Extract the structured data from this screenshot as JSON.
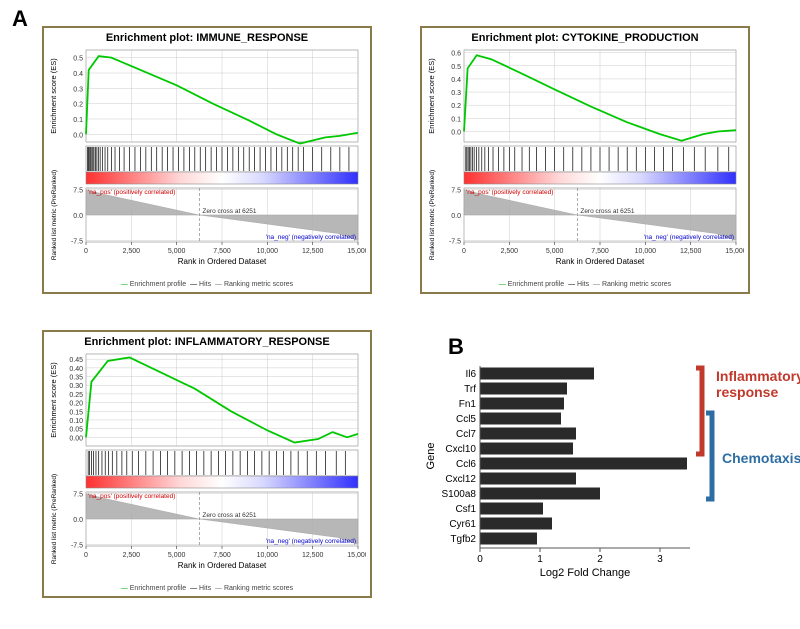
{
  "panel_labels": {
    "A": "A",
    "B": "B"
  },
  "gsea": {
    "common": {
      "ylabel_es": "Enrichment score (ES)",
      "ylabel_rank": "Ranked list metric (PreRanked)",
      "xlabel": "Rank in Ordered Dataset",
      "zero_cross": "Zero cross at 6251",
      "pos_corr": "'na_pos' (positively correlated)",
      "neg_corr": "'na_neg' (negatively correlated)",
      "legend_profile": "Enrichment profile",
      "legend_hits": "Hits",
      "legend_ranking": "Ranking metric scores",
      "x_ticks": [
        0,
        2500,
        5000,
        7500,
        10000,
        12500,
        15000
      ],
      "rank_ticks": [
        -7.5,
        0.0,
        7.5
      ],
      "es_color": "#00c800",
      "hit_color": "#000000",
      "grid_color": "#c0c0c0",
      "gradient_pos": "#ff3030",
      "gradient_neg": "#3030ff",
      "rank_fill": "#b0b0b0",
      "x_min": 0,
      "x_max": 15000,
      "rank_min": -8,
      "rank_max": 8,
      "bg": "#ffffff"
    },
    "plots": [
      {
        "title": "Enrichment plot: IMMUNE_RESPONSE",
        "es_ticks": [
          0.0,
          0.1,
          0.2,
          0.3,
          0.4,
          0.5
        ],
        "es_min": -0.05,
        "es_max": 0.55,
        "curve": [
          [
            0,
            0.0
          ],
          [
            150,
            0.42
          ],
          [
            700,
            0.51
          ],
          [
            1400,
            0.5
          ],
          [
            3000,
            0.42
          ],
          [
            5000,
            0.32
          ],
          [
            7000,
            0.2
          ],
          [
            9000,
            0.09
          ],
          [
            10500,
            0.0
          ],
          [
            11800,
            -0.06
          ],
          [
            13200,
            -0.02
          ],
          [
            14000,
            -0.01
          ],
          [
            15000,
            0.01
          ]
        ],
        "hits": [
          80,
          130,
          180,
          240,
          320,
          380,
          440,
          520,
          600,
          680,
          780,
          900,
          1050,
          1200,
          1400,
          1600,
          1850,
          2100,
          2400,
          2700,
          3000,
          3300,
          3600,
          3900,
          4200,
          4500,
          4800,
          5100,
          5400,
          5700,
          6000,
          6300,
          6600,
          6900,
          7200,
          7500,
          7800,
          8100,
          8400,
          8700,
          9000,
          9300,
          9600,
          9900,
          10200,
          10500,
          10800,
          11100,
          11400,
          11700,
          12000,
          12500,
          13000,
          13500,
          14000,
          14500
        ]
      },
      {
        "title": "Enrichment plot: CYTOKINE_PRODUCTION",
        "es_ticks": [
          0.0,
          0.1,
          0.2,
          0.3,
          0.4,
          0.5,
          0.6
        ],
        "es_min": -0.08,
        "es_max": 0.62,
        "curve": [
          [
            0,
            0.0
          ],
          [
            200,
            0.48
          ],
          [
            700,
            0.58
          ],
          [
            1500,
            0.55
          ],
          [
            3200,
            0.44
          ],
          [
            5000,
            0.32
          ],
          [
            7000,
            0.19
          ],
          [
            9000,
            0.07
          ],
          [
            10800,
            -0.02
          ],
          [
            12000,
            -0.07
          ],
          [
            13200,
            -0.02
          ],
          [
            14000,
            0.0
          ],
          [
            15000,
            0.01
          ]
        ],
        "hits": [
          100,
          160,
          230,
          300,
          380,
          460,
          560,
          680,
          820,
          980,
          1150,
          1350,
          1600,
          1900,
          2200,
          2500,
          2800,
          3200,
          3600,
          4000,
          4500,
          5000,
          5500,
          6000,
          6500,
          7000,
          7500,
          8000,
          8500,
          9000,
          9500,
          10000,
          10500,
          11000,
          11500,
          12100,
          12700,
          13300,
          14000,
          14600
        ]
      },
      {
        "title": "Enrichment plot: INFLAMMATORY_RESPONSE",
        "es_ticks": [
          0.0,
          0.05,
          0.1,
          0.15,
          0.2,
          0.25,
          0.3,
          0.35,
          0.4,
          0.45
        ],
        "es_min": -0.05,
        "es_max": 0.48,
        "curve": [
          [
            0,
            0.0
          ],
          [
            300,
            0.32
          ],
          [
            1200,
            0.44
          ],
          [
            2400,
            0.46
          ],
          [
            4000,
            0.38
          ],
          [
            6000,
            0.28
          ],
          [
            8000,
            0.15
          ],
          [
            10000,
            0.04
          ],
          [
            11500,
            -0.03
          ],
          [
            12800,
            -0.01
          ],
          [
            13600,
            0.03
          ],
          [
            14400,
            0.0
          ],
          [
            15000,
            0.02
          ]
        ],
        "hits": [
          120,
          200,
          310,
          420,
          550,
          700,
          880,
          1060,
          1250,
          1450,
          1700,
          1980,
          2250,
          2550,
          2900,
          3300,
          3700,
          4100,
          4500,
          4900,
          5300,
          5700,
          6100,
          6500,
          6900,
          7300,
          7700,
          8100,
          8500,
          8900,
          9300,
          9700,
          10100,
          10500,
          10900,
          11300,
          11700,
          12200,
          12700,
          13200,
          13800,
          14300
        ]
      }
    ]
  },
  "barchart": {
    "xlabel": "Log2 Fold Change",
    "ylabel": "Gene",
    "x_ticks": [
      0,
      1,
      2,
      3
    ],
    "x_min": 0,
    "x_max": 3.5,
    "bar_color": "#2a2a2a",
    "bg": "#ffffff",
    "axis_color": "#555555",
    "tick_fontsize": 10,
    "label_fontsize": 12,
    "items": [
      {
        "gene": "Il6",
        "value": 1.9
      },
      {
        "gene": "Trf",
        "value": 1.45
      },
      {
        "gene": "Fn1",
        "value": 1.4
      },
      {
        "gene": "Ccl5",
        "value": 1.35
      },
      {
        "gene": "Ccl7",
        "value": 1.6
      },
      {
        "gene": "Cxcl10",
        "value": 1.55
      },
      {
        "gene": "Ccl6",
        "value": 3.45
      },
      {
        "gene": "Cxcl12",
        "value": 1.6
      },
      {
        "gene": "S100a8",
        "value": 2.0
      },
      {
        "gene": "Csf1",
        "value": 1.05
      },
      {
        "gene": "Cyr61",
        "value": 1.2
      },
      {
        "gene": "Tgfb2",
        "value": 0.95
      }
    ],
    "brackets": [
      {
        "label": "Inflammatory\nresponse",
        "from": 0,
        "to": 5,
        "color": "#c0392b"
      },
      {
        "label": "Chemotaxis",
        "from": 3,
        "to": 8,
        "color": "#2e6da4"
      }
    ]
  }
}
